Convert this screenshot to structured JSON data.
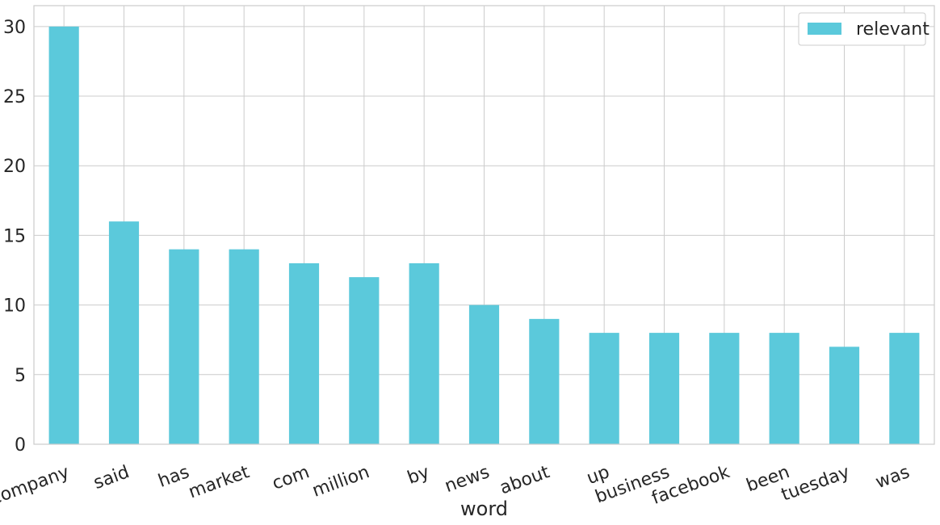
{
  "chart_data": {
    "type": "bar",
    "categories": [
      "company",
      "said",
      "has",
      "market",
      "com",
      "million",
      "by",
      "news",
      "about",
      "up",
      "business",
      "facebook",
      "been",
      "tuesday",
      "was"
    ],
    "series": [
      {
        "name": "relevant",
        "values": [
          30,
          16,
          14,
          14,
          13,
          12,
          13,
          10,
          9,
          8,
          8,
          8,
          8,
          7,
          8
        ],
        "color": "#5bc9db"
      }
    ],
    "title": "",
    "xlabel": "word",
    "ylabel": "",
    "ylim": [
      0,
      31.5
    ],
    "yticks": [
      0,
      5,
      10,
      15,
      20,
      25,
      30
    ],
    "grid": true,
    "legend": "top-right"
  }
}
